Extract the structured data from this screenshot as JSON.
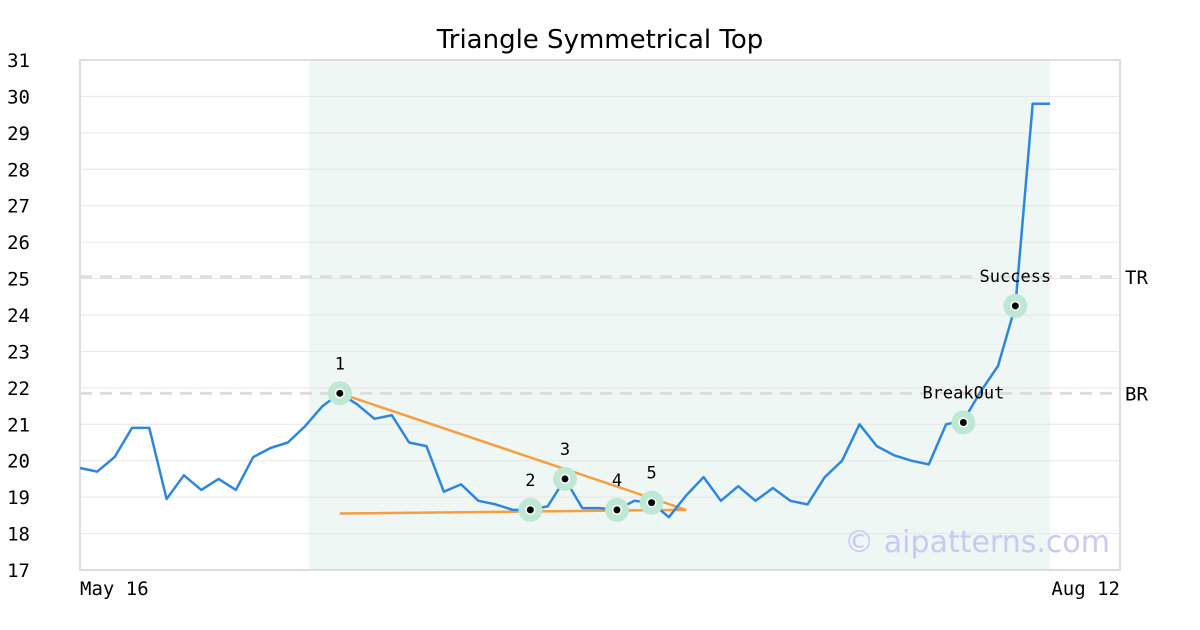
{
  "colors": {
    "price_line": "#2f86dd",
    "trend_lines": "#f59e42",
    "pattern_band": "#eef7f3",
    "marker_halo": "#bfe8d4",
    "grid": "#e6e6e6",
    "reference_lines": "#dddddd",
    "frame": "#dddddd",
    "watermark": "#c9c9f2"
  },
  "watermark": "© aipatterns.com",
  "chart_data": {
    "type": "line",
    "title": "Triangle Symmetrical Top",
    "xlabel": "",
    "ylabel": "",
    "ylim": [
      17,
      31
    ],
    "yticks": [
      17,
      18,
      19,
      20,
      21,
      22,
      23,
      24,
      25,
      26,
      27,
      28,
      29,
      30,
      31
    ],
    "x_tick_labels": [
      {
        "index": 0,
        "label": "May 16"
      },
      {
        "index": 56,
        "label": "Aug 12"
      }
    ],
    "grid": true,
    "pattern_range": {
      "start_index": 13,
      "end_index": 56
    },
    "series": [
      {
        "values": [
          19.8,
          19.7,
          20.1,
          20.9,
          20.9,
          18.95,
          19.6,
          19.2,
          19.5,
          19.2,
          20.1,
          20.35,
          20.5,
          20.95,
          21.5,
          21.85,
          21.55,
          21.15,
          21.25,
          20.5,
          20.4,
          19.15,
          19.35,
          18.9,
          18.8,
          18.65,
          18.65,
          18.75,
          19.5,
          18.7,
          18.7,
          18.65,
          18.9,
          18.85,
          18.45,
          19.05,
          19.55,
          18.9,
          19.3,
          18.9,
          19.25,
          18.9,
          18.8,
          19.55,
          20.0,
          21.0,
          20.4,
          20.15,
          20.0,
          19.9,
          21.0,
          21.1,
          21.9,
          22.6,
          24.25,
          29.8,
          29.8
        ]
      }
    ],
    "pattern_points": [
      {
        "label": "1",
        "index": 15,
        "value": 21.85
      },
      {
        "label": "2",
        "index": 26,
        "value": 18.65
      },
      {
        "label": "3",
        "index": 28,
        "value": 19.5
      },
      {
        "label": "4",
        "index": 31,
        "value": 18.65
      },
      {
        "label": "5",
        "index": 33,
        "value": 18.85
      },
      {
        "label": "BreakOut",
        "index": 51,
        "value": 21.05
      },
      {
        "label": "Success",
        "index": 54,
        "value": 24.25
      }
    ],
    "trend_lines": [
      {
        "from": {
          "index": 15,
          "value": 21.85
        },
        "to": {
          "index": 35,
          "value": 18.65
        }
      },
      {
        "from": {
          "index": 15,
          "value": 18.55
        },
        "to": {
          "index": 35,
          "value": 18.65
        }
      }
    ],
    "reference_lines": [
      {
        "label": "TR",
        "value": 25.05
      },
      {
        "label": "BR",
        "value": 21.85
      }
    ]
  }
}
